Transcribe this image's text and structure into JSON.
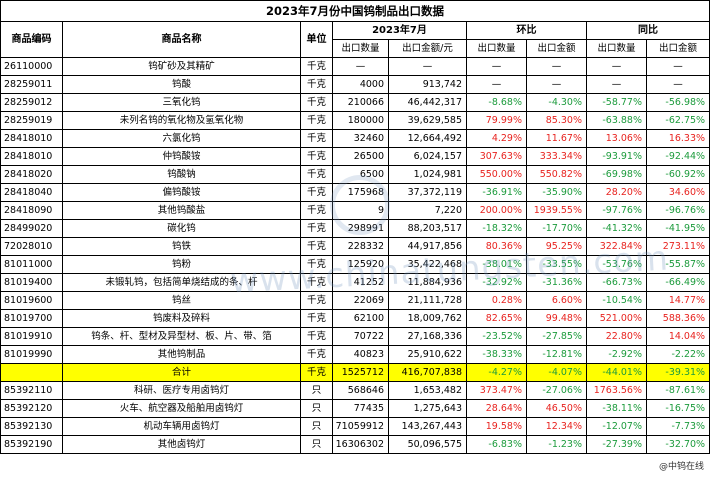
{
  "title": "2023年7月份中国钨制品出口数据",
  "headers": {
    "code": "商品编码",
    "name": "商品名称",
    "unit": "单位",
    "period": "2023年7月",
    "mom": "环比",
    "yoy": "同比",
    "qty": "出口数量",
    "amount": "出口金额/元",
    "qty2": "出口数量",
    "amt2": "出口金额",
    "qty3": "出口数量",
    "amt3": "出口金额"
  },
  "rows": [
    {
      "code": "26110000",
      "name": "钨矿砂及其精矿",
      "unit": "千克",
      "qty": "—",
      "amount": "—",
      "mom_qty": "—",
      "mom_amt": "—",
      "yoy_qty": "—",
      "yoy_amt": "—"
    },
    {
      "code": "28259011",
      "name": "钨酸",
      "unit": "千克",
      "qty": "4000",
      "amount": "913,742",
      "mom_qty": "—",
      "mom_amt": "—",
      "yoy_qty": "—",
      "yoy_amt": "—"
    },
    {
      "code": "28259012",
      "name": "三氧化钨",
      "unit": "千克",
      "qty": "210066",
      "amount": "46,442,317",
      "mom_qty": "-8.68%",
      "mom_amt": "-4.30%",
      "yoy_qty": "-58.77%",
      "yoy_amt": "-56.98%"
    },
    {
      "code": "28259019",
      "name": "未列名钨的氧化物及氢氧化物",
      "unit": "千克",
      "qty": "180000",
      "amount": "39,629,585",
      "mom_qty": "79.99%",
      "mom_amt": "85.30%",
      "yoy_qty": "-63.88%",
      "yoy_amt": "-62.75%"
    },
    {
      "code": "28418010",
      "name": "六氯化钨",
      "unit": "千克",
      "qty": "32460",
      "amount": "12,664,492",
      "mom_qty": "4.29%",
      "mom_amt": "11.67%",
      "yoy_qty": "13.06%",
      "yoy_amt": "16.33%"
    },
    {
      "code": "28418010",
      "name": "仲钨酸铵",
      "unit": "千克",
      "qty": "26500",
      "amount": "6,024,157",
      "mom_qty": "307.63%",
      "mom_amt": "333.34%",
      "yoy_qty": "-93.91%",
      "yoy_amt": "-92.44%"
    },
    {
      "code": "28418020",
      "name": "钨酸钠",
      "unit": "千克",
      "qty": "6500",
      "amount": "1,024,981",
      "mom_qty": "550.00%",
      "mom_amt": "550.82%",
      "yoy_qty": "-69.98%",
      "yoy_amt": "-60.92%"
    },
    {
      "code": "28418040",
      "name": "偏钨酸铵",
      "unit": "千克",
      "qty": "175968",
      "amount": "37,372,119",
      "mom_qty": "-36.91%",
      "mom_amt": "-35.90%",
      "yoy_qty": "28.20%",
      "yoy_amt": "34.60%"
    },
    {
      "code": "28418090",
      "name": "其他钨酸盐",
      "unit": "千克",
      "qty": "9",
      "amount": "7,220",
      "mom_qty": "200.00%",
      "mom_amt": "1939.55%",
      "yoy_qty": "-97.76%",
      "yoy_amt": "-96.76%"
    },
    {
      "code": "28499020",
      "name": "碳化钨",
      "unit": "千克",
      "qty": "298991",
      "amount": "88,203,517",
      "mom_qty": "-18.32%",
      "mom_amt": "-17.70%",
      "yoy_qty": "-41.32%",
      "yoy_amt": "-41.95%"
    },
    {
      "code": "72028010",
      "name": "钨铁",
      "unit": "千克",
      "qty": "228332",
      "amount": "44,917,856",
      "mom_qty": "80.36%",
      "mom_amt": "95.25%",
      "yoy_qty": "322.84%",
      "yoy_amt": "273.11%"
    },
    {
      "code": "81011000",
      "name": "钨粉",
      "unit": "千克",
      "qty": "125920",
      "amount": "35,422,468",
      "mom_qty": "-38.01%",
      "mom_amt": "-33.55%",
      "yoy_qty": "-53.76%",
      "yoy_amt": "-55.87%"
    },
    {
      "code": "81019400",
      "name": "未锻轧钨，包括简单烧结成的条、杆",
      "unit": "千克",
      "qty": "41252",
      "amount": "11,884,936",
      "mom_qty": "-32.92%",
      "mom_amt": "-31.36%",
      "yoy_qty": "-66.73%",
      "yoy_amt": "-66.49%"
    },
    {
      "code": "81019600",
      "name": "钨丝",
      "unit": "千克",
      "qty": "22069",
      "amount": "21,111,728",
      "mom_qty": "0.28%",
      "mom_amt": "6.60%",
      "yoy_qty": "-10.54%",
      "yoy_amt": "14.77%"
    },
    {
      "code": "81019700",
      "name": "钨废料及碎料",
      "unit": "千克",
      "qty": "62100",
      "amount": "18,009,762",
      "mom_qty": "82.65%",
      "mom_amt": "99.48%",
      "yoy_qty": "521.00%",
      "yoy_amt": "588.36%"
    },
    {
      "code": "81019910",
      "name": "钨条、杆、型材及异型材、板、片、带、箔",
      "unit": "千克",
      "qty": "70722",
      "amount": "27,168,336",
      "mom_qty": "-23.52%",
      "mom_amt": "-27.85%",
      "yoy_qty": "22.80%",
      "yoy_amt": "14.04%"
    },
    {
      "code": "81019990",
      "name": "其他钨制品",
      "unit": "千克",
      "qty": "40823",
      "amount": "25,910,622",
      "mom_qty": "-38.33%",
      "mom_amt": "-12.81%",
      "yoy_qty": "-2.92%",
      "yoy_amt": "-2.22%"
    },
    {
      "code": "",
      "name": "合计",
      "unit": "千克",
      "qty": "1525712",
      "amount": "416,707,838",
      "mom_qty": "-4.27%",
      "mom_amt": "-4.07%",
      "yoy_qty": "-44.01%",
      "yoy_amt": "-39.31%",
      "total": true
    },
    {
      "code": "85392110",
      "name": "科研、医疗专用卤钨灯",
      "unit": "只",
      "qty": "568646",
      "amount": "1,653,482",
      "mom_qty": "373.47%",
      "mom_amt": "-27.06%",
      "yoy_qty": "1763.56%",
      "yoy_amt": "-87.61%"
    },
    {
      "code": "85392120",
      "name": "火车、航空器及船舶用卤钨灯",
      "unit": "只",
      "qty": "77435",
      "amount": "1,275,643",
      "mom_qty": "28.64%",
      "mom_amt": "46.50%",
      "yoy_qty": "-38.11%",
      "yoy_amt": "-16.75%"
    },
    {
      "code": "85392130",
      "name": "机动车辆用卤钨灯",
      "unit": "只",
      "qty": "71059912",
      "amount": "143,267,443",
      "mom_qty": "19.58%",
      "mom_amt": "12.34%",
      "yoy_qty": "-12.07%",
      "yoy_amt": "-7.73%"
    },
    {
      "code": "85392190",
      "name": "其他卤钨灯",
      "unit": "只",
      "qty": "16306302",
      "amount": "50,096,575",
      "mom_qty": "-6.83%",
      "mom_amt": "-1.23%",
      "yoy_qty": "-27.39%",
      "yoy_amt": "-32.70%"
    }
  ],
  "watermark": "www.chinatungsten.com",
  "footer": "@中钨在线",
  "colors": {
    "positive": "#e8231f",
    "negative": "#1c9b3c",
    "total_highlight": "#ffff00"
  }
}
